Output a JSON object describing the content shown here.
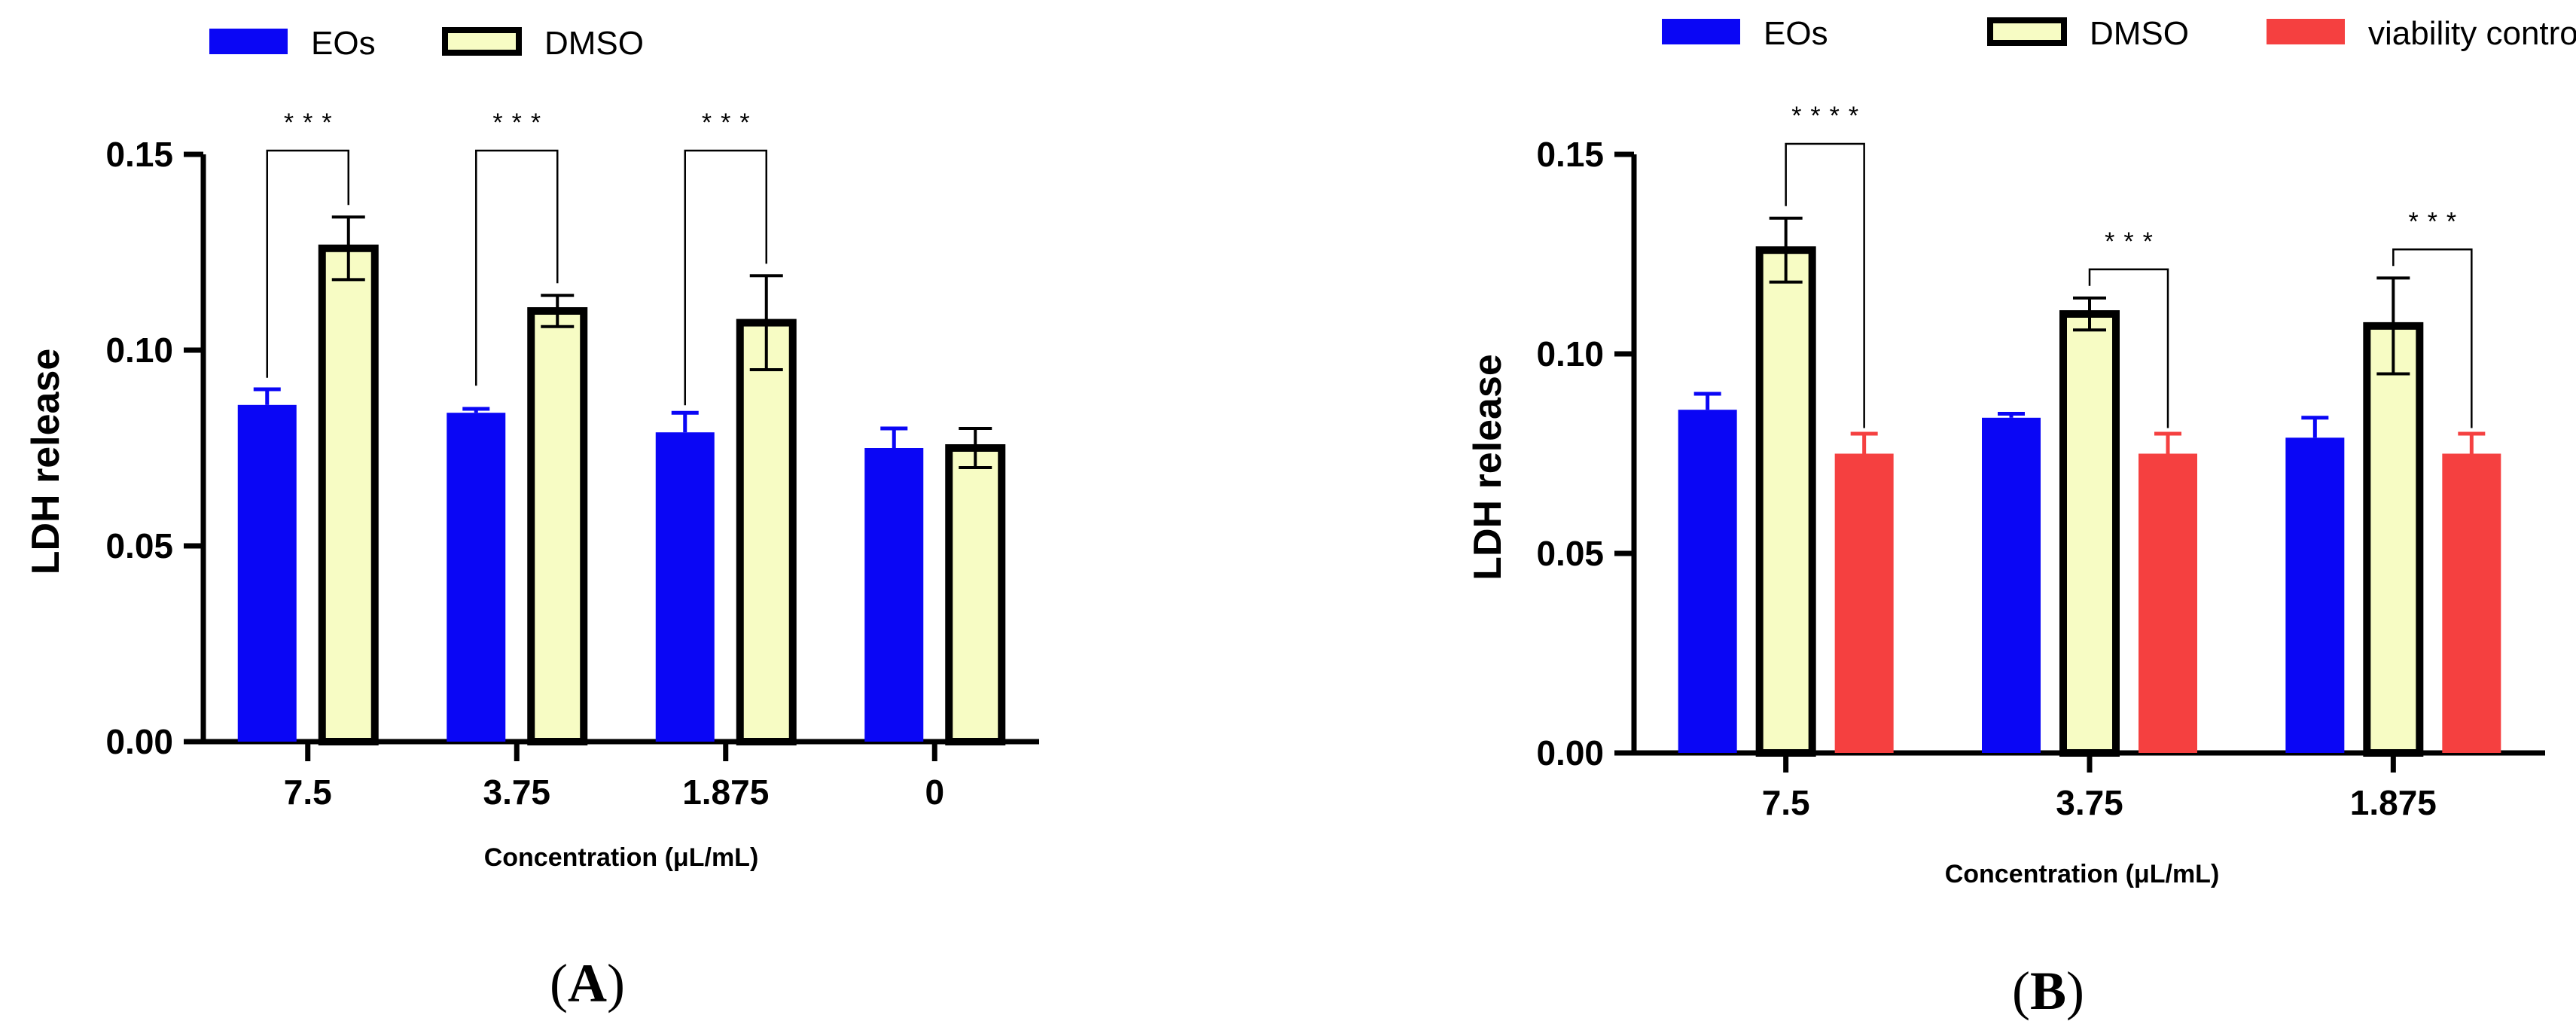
{
  "chart_data": [
    {
      "type": "bar",
      "panel_label": "(A)",
      "panel_letter": "A",
      "ylabel": "LDH release",
      "xlabel": "Concentration (μL/mL)",
      "ylim": [
        0,
        0.15
      ],
      "yticks": [
        0,
        0.05,
        0.1,
        0.15
      ],
      "ytick_labels": [
        "0.00",
        "0.05",
        "0.10",
        "0.15"
      ],
      "categories": [
        "7.5",
        "3.75",
        "1.875",
        "0"
      ],
      "series": [
        {
          "name": "EOs",
          "color": "#0a06f5",
          "style": "solid",
          "values": [
            0.086,
            0.084,
            0.079,
            0.075
          ],
          "errors": [
            0.004,
            0.001,
            0.005,
            0.005
          ]
        },
        {
          "name": "DMSO",
          "color": "#f7fcc4",
          "style": "outlined",
          "values": [
            0.126,
            0.11,
            0.107,
            0.075
          ],
          "errors": [
            0.008,
            0.004,
            0.012,
            0.005
          ]
        }
      ],
      "significance": [
        {
          "category": 0,
          "from": 0,
          "to": 1,
          "label": "***"
        },
        {
          "category": 1,
          "from": 0,
          "to": 1,
          "label": "***"
        },
        {
          "category": 2,
          "from": 0,
          "to": 1,
          "label": "***"
        }
      ],
      "legend": "top-left"
    },
    {
      "type": "bar",
      "panel_label": "(B)",
      "panel_letter": "B",
      "ylabel": "LDH release",
      "xlabel": "Concentration (μL/mL)",
      "ylim": [
        0,
        0.15
      ],
      "yticks": [
        0,
        0.05,
        0.1,
        0.15
      ],
      "ytick_labels": [
        "0.00",
        "0.05",
        "0.10",
        "0.15"
      ],
      "categories": [
        "7.5",
        "3.75",
        "1.875"
      ],
      "series": [
        {
          "name": "EOs",
          "color": "#0a06f5",
          "style": "solid",
          "values": [
            0.086,
            0.084,
            0.079
          ],
          "errors": [
            0.004,
            0.001,
            0.005
          ]
        },
        {
          "name": "DMSO",
          "color": "#f7fcc4",
          "style": "outlined",
          "values": [
            0.126,
            0.11,
            0.107
          ],
          "errors": [
            0.008,
            0.004,
            0.012
          ]
        },
        {
          "name": "viability control",
          "color": "#f54040",
          "style": "solid",
          "values": [
            0.075,
            0.075,
            0.075
          ],
          "errors": [
            0.005,
            0.005,
            0.005
          ]
        }
      ],
      "significance": [
        {
          "category": 0,
          "from": 1,
          "to": 2,
          "label": "****"
        },
        {
          "category": 1,
          "from": 1,
          "to": 2,
          "label": "***"
        },
        {
          "category": 2,
          "from": 1,
          "to": 2,
          "label": "***"
        }
      ],
      "legend": "top"
    }
  ]
}
